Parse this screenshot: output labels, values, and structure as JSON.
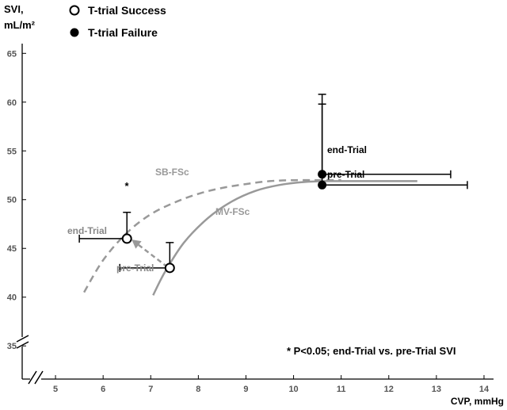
{
  "chart_data": {
    "type": "scatter",
    "ylabel": "SVI,",
    "ylabel_unit": "mL/m²",
    "xlabel": "CVP, mmHg",
    "xlim": [
      4.3,
      14.2
    ],
    "ylim": [
      31.6,
      66.0
    ],
    "x_ticks": [
      "5",
      "6",
      "7",
      "8",
      "9",
      "10",
      "11",
      "12",
      "13",
      "14"
    ],
    "y_ticks": [
      "35",
      "40",
      "45",
      "50",
      "55",
      "60",
      "65"
    ],
    "legend": {
      "placement": "top-left",
      "entries": [
        {
          "label": "T-trial Success",
          "marker": "open-circle"
        },
        {
          "label": "T-trial Failure",
          "marker": "filled-circle"
        }
      ]
    },
    "series": [
      {
        "name": "T-trial Success",
        "marker": "open-circle",
        "points": [
          {
            "label": "pre-Trial",
            "x": 7.4,
            "y": 43.0,
            "x_err_low": 1.05,
            "y_err_high": 2.6
          },
          {
            "label": "end-Trial",
            "x": 6.5,
            "y": 46.0,
            "x_err_low": 1.0,
            "y_err_high": 2.7,
            "annotation": "*"
          }
        ]
      },
      {
        "name": "T-trial Failure",
        "marker": "filled-circle",
        "points": [
          {
            "label": "pre-Trial",
            "x": 10.6,
            "y": 51.5,
            "x_err_high": 3.05,
            "y_err_high": 8.3
          },
          {
            "label": "end-Trial",
            "x": 10.6,
            "y": 52.6,
            "x_err_high": 2.7,
            "y_err_high": 8.2
          }
        ]
      }
    ],
    "curves": [
      {
        "label": "SB-FSc",
        "style": "dashed",
        "x": [
          5.6,
          6.0,
          6.5,
          7.0,
          7.5,
          8.0,
          8.5,
          9.0,
          9.5,
          10.0,
          10.6,
          11.0
        ],
        "y": [
          40.5,
          43.8,
          46.6,
          48.5,
          49.7,
          50.6,
          51.2,
          51.6,
          51.9,
          52.0,
          52.0,
          52.0
        ]
      },
      {
        "label": "MV-FSc",
        "style": "solid",
        "x": [
          7.05,
          7.3,
          7.7,
          8.2,
          8.7,
          9.2,
          9.7,
          10.2,
          10.7,
          11.5,
          12.6
        ],
        "y": [
          40.2,
          42.6,
          45.6,
          48.1,
          49.8,
          50.9,
          51.5,
          51.8,
          51.9,
          51.9,
          51.9
        ]
      }
    ],
    "arrows": [
      {
        "from": [
          7.35,
          43.1
        ],
        "to": [
          6.6,
          45.9
        ],
        "style": "dashed"
      }
    ],
    "annotations": [
      {
        "text": "* P<0.05; end-Trial vs. pre-Trial SVI",
        "placement": "bottom-right"
      },
      {
        "text": "SB-FSc"
      },
      {
        "text": "MV-FSc"
      }
    ],
    "axis_breaks": [
      "y",
      "x"
    ],
    "colors": {
      "curve": "#999999",
      "success_label": "#888888",
      "failure_label": "#000000",
      "axis": "#000000"
    }
  }
}
